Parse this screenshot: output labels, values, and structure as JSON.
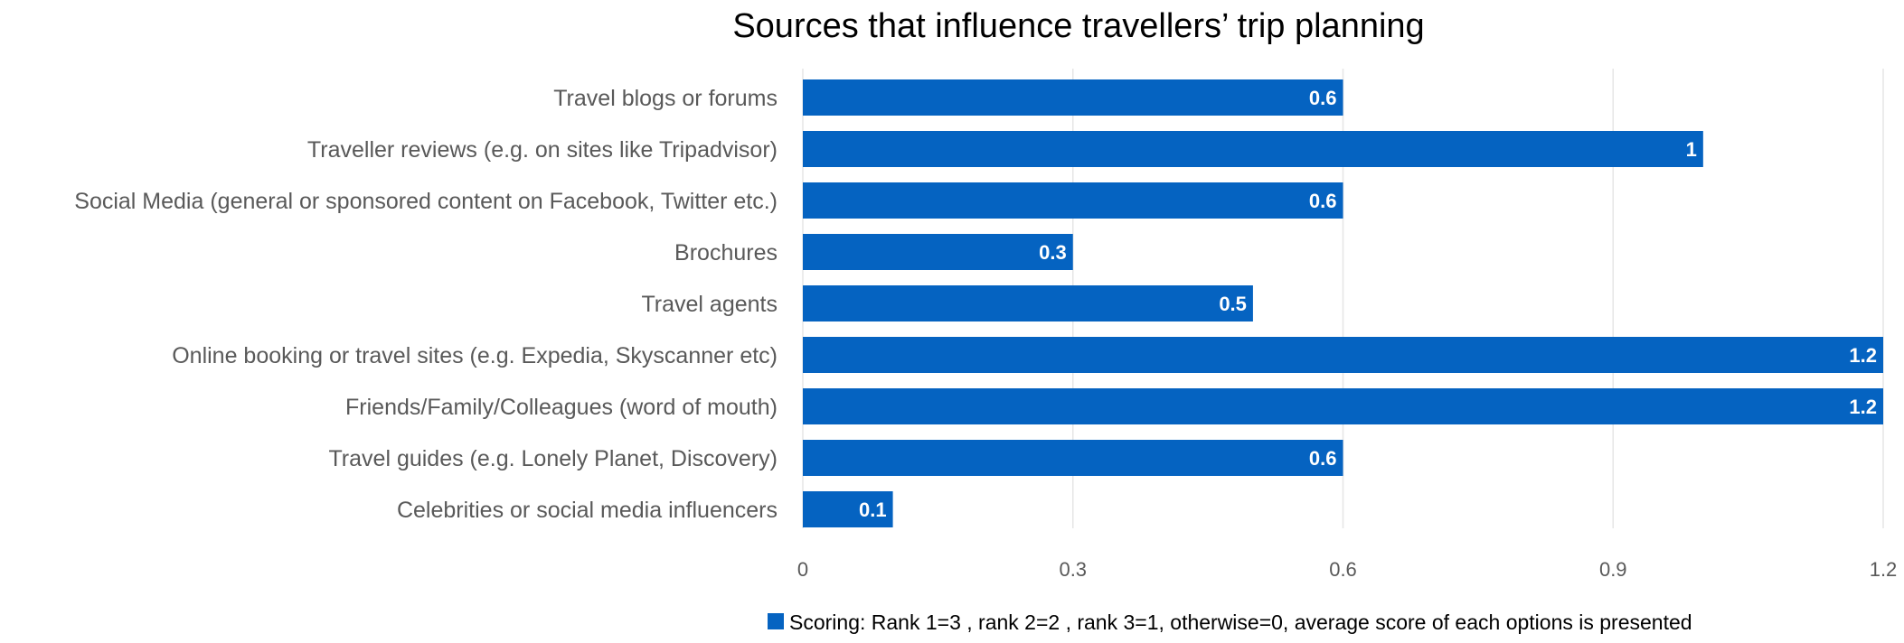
{
  "chart_data": {
    "type": "bar",
    "orientation": "horizontal",
    "title": "Sources that influence travellers’ trip planning",
    "xlabel": "",
    "ylabel": "",
    "categories": [
      "Travel blogs or forums",
      "Traveller reviews (e.g. on sites like Tripadvisor)",
      "Social Media  (general or sponsored content on Facebook, Twitter etc.)",
      "Brochures",
      "Travel agents",
      "Online booking or travel sites (e.g. Expedia, Skyscanner etc)",
      "Friends/Family/Colleagues (word of mouth)",
      "Travel guides (e.g. Lonely Planet, Discovery)",
      "Celebrities or social media influencers"
    ],
    "series": [
      {
        "name": "Scoring: Rank 1=3 , rank 2=2 , rank 3=1, otherwise=0, average score of each options is presented",
        "values": [
          0.6,
          1,
          0.6,
          0.3,
          0.5,
          1.2,
          1.2,
          0.6,
          0.1
        ],
        "data_labels": [
          "0.6",
          "1",
          "0.6",
          "0.3",
          "0.5",
          "1.2",
          "1.2",
          "0.6",
          "0.1"
        ],
        "color": "#0563c1"
      }
    ],
    "xlim": [
      0,
      1.2
    ],
    "xticks": [
      0,
      0.3,
      0.6,
      0.9,
      1.2
    ],
    "xtick_labels": [
      "0",
      "0.3",
      "0.6",
      "0.9",
      "1.2"
    ],
    "grid": "vertical",
    "gridline_color": "#e6e6e6",
    "legend_position": "bottom"
  }
}
